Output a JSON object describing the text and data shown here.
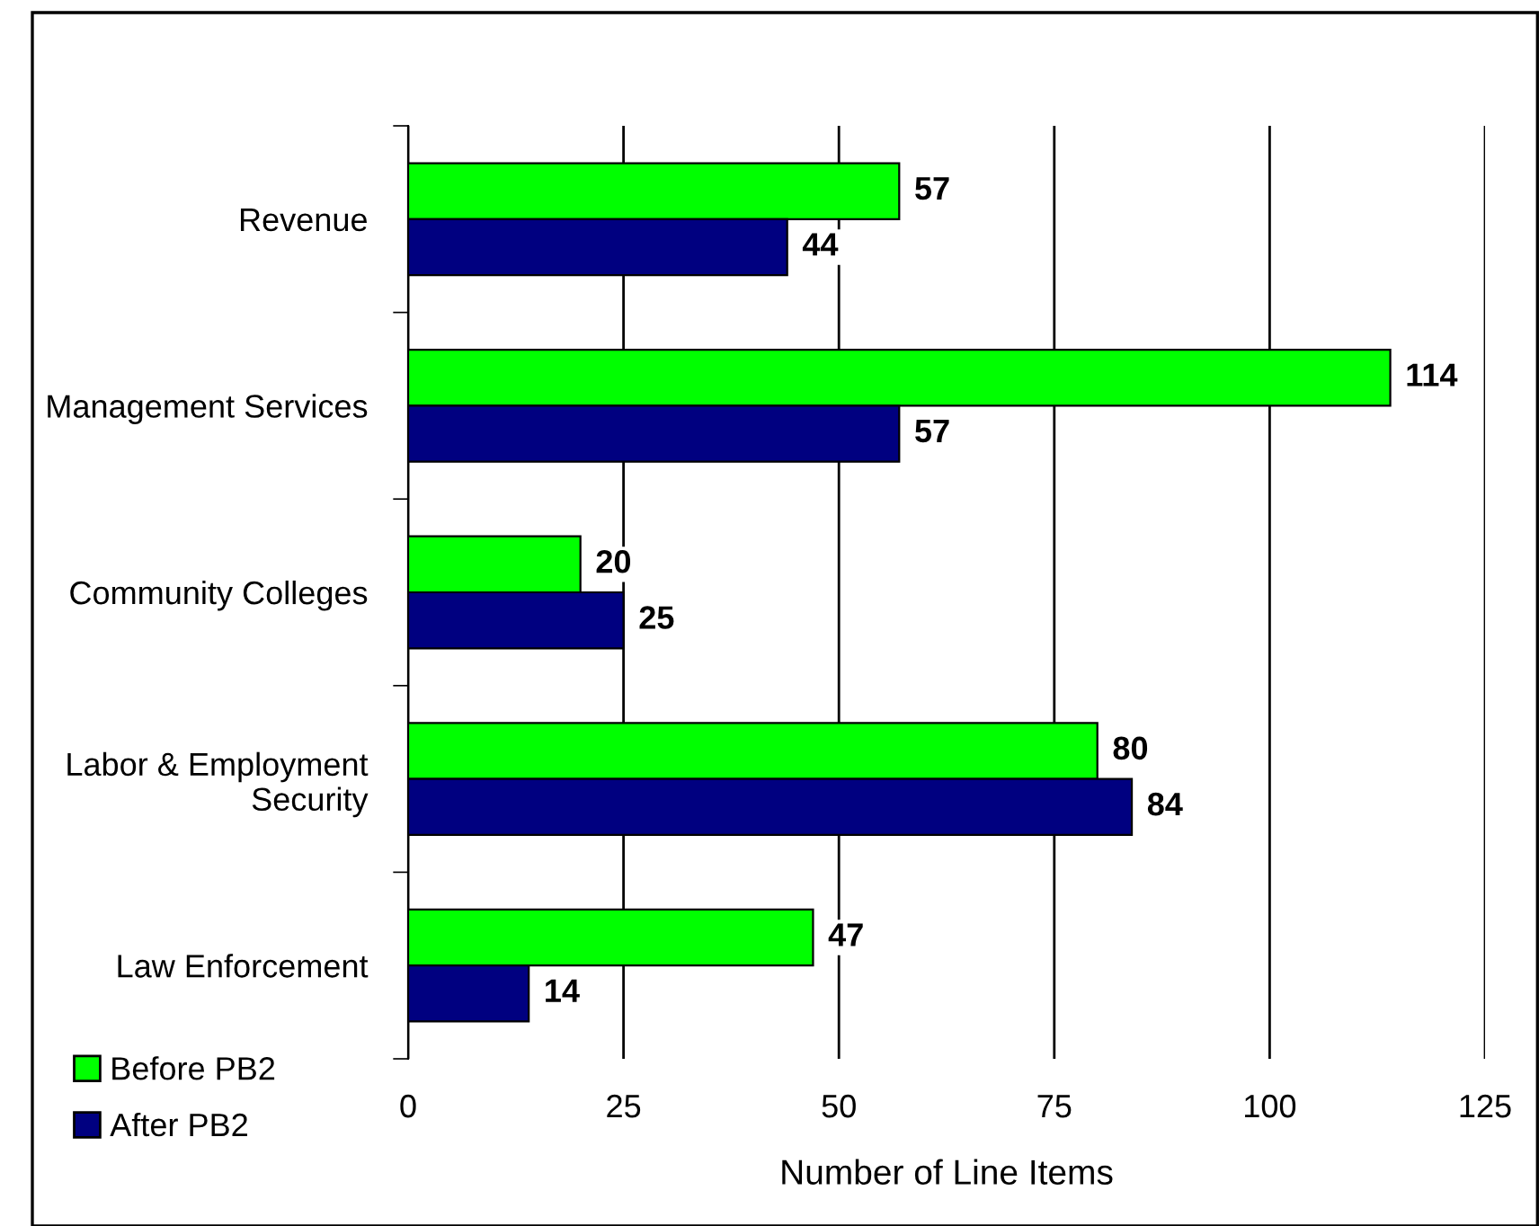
{
  "chart_data": {
    "type": "bar",
    "orientation": "horizontal",
    "categories": [
      "Revenue",
      "Management Services",
      "Community Colleges",
      "Labor & Employment\nSecurity",
      "Law Enforcement"
    ],
    "series": [
      {
        "name": "Before PB2",
        "color": "#00ff00",
        "values": [
          57,
          114,
          20,
          80,
          47
        ]
      },
      {
        "name": "After PB2",
        "color": "#000080",
        "values": [
          44,
          57,
          25,
          84,
          14
        ]
      }
    ],
    "xlabel": "Number of Line Items",
    "xlim": [
      0,
      125
    ],
    "xticks": [
      0,
      25,
      50,
      75,
      100,
      125
    ],
    "grid": "x",
    "legend": "bottom left",
    "data_labels": true
  }
}
